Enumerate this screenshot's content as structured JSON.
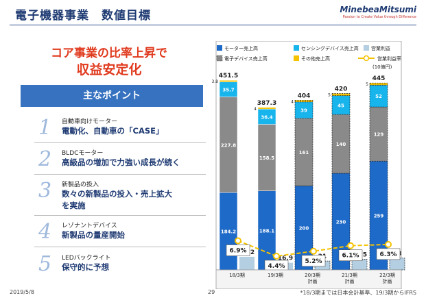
{
  "header": {
    "title": "電子機器事業　数値目標",
    "logo": "MinebeaMitsumi",
    "logo_tagline": "Passion to Create Value through Difference"
  },
  "headline": {
    "line1": "コア事業の比率上昇で",
    "line2": "収益安定化"
  },
  "key_points": {
    "title": "主なポイント",
    "items": [
      {
        "num": "1",
        "sub": "自動車向けモーター",
        "main": [
          "電動化、自動車の「CASE」"
        ]
      },
      {
        "num": "2",
        "sub": "BLDCモーター",
        "main": [
          "高級品の増加で力強い成長が続く"
        ]
      },
      {
        "num": "3",
        "sub": "新製品の投入",
        "main": [
          "数々の新製品の投入・売上拡大",
          "を実施"
        ]
      },
      {
        "num": "4",
        "sub": "レゾナントデバイス",
        "main": [
          "新製品の量産開始"
        ]
      },
      {
        "num": "5",
        "sub": "LEDバックライト",
        "main": [
          "保守的に予想"
        ]
      }
    ]
  },
  "footer": {
    "date": "2019/5/8",
    "page": "29",
    "note": "*18/3期までは日本会計基準、19/3期からIFRS"
  },
  "colors": {
    "motor": "#1e6ac8",
    "sensing": "#18b4ec",
    "electronic": "#8a8a8a",
    "other": "#f5c200",
    "profit": "#b4cee2",
    "margin": "#f5c200",
    "title": "#1f3b73",
    "headline": "#e03a1e"
  },
  "chart_data": {
    "type": "bar",
    "unit": "(10億円)",
    "categories": [
      "18/3期",
      "19/3期",
      "20/3期\n計画",
      "21/3期\n計画",
      "22/3期\n計画"
    ],
    "series": [
      {
        "name": "モーター売上高",
        "values": [
          184.2,
          188.1,
          200,
          230,
          259
        ]
      },
      {
        "name": "電子デバイス売上高",
        "values": [
          227.8,
          158.5,
          161,
          140,
          129
        ]
      },
      {
        "name": "センシングデバイス売上高",
        "values": [
          35.7,
          36.4,
          39,
          45,
          52
        ]
      },
      {
        "name": "その他売上高",
        "values": [
          3.8,
          4,
          4,
          5,
          5
        ]
      },
      {
        "name": "営業利益",
        "values": [
          31.2,
          16.9,
          21,
          25.5,
          28
        ]
      },
      {
        "name": "営業利益率",
        "values": [
          "6.9%",
          "4.4%",
          "5.2%",
          "6.1%",
          "6.3%"
        ]
      }
    ],
    "totals": [
      "451.5",
      "387.3",
      "404",
      "420",
      "445"
    ],
    "stack_labels": {
      "motor": [
        "184.2",
        "188.1",
        "200",
        "230",
        "259"
      ],
      "electronic": [
        "227.8",
        "158.5",
        "161",
        "140",
        "129"
      ],
      "sensing": [
        "35.7",
        "36.4",
        "39",
        "45",
        "52"
      ],
      "other": [
        "3.8",
        "4",
        "4",
        "5",
        "5"
      ],
      "profit": [
        "31.2",
        "16.9",
        "21",
        "25.5",
        "28"
      ]
    },
    "margin_values": [
      6.9,
      4.4,
      5.2,
      6.1,
      6.3
    ],
    "ylim": [
      0,
      460
    ]
  }
}
